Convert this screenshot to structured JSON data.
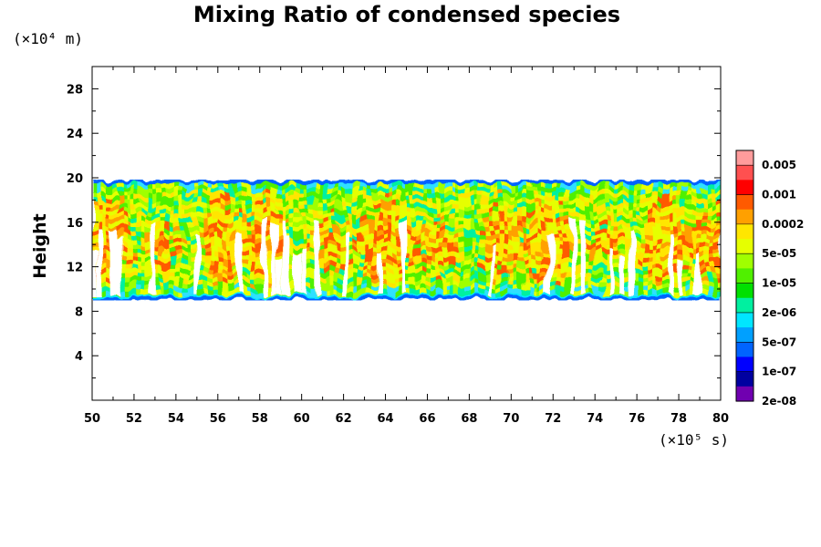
{
  "chart_data": {
    "type": "heatmap",
    "title": "Mixing Ratio of condensed species",
    "ylabel": "Height",
    "y_unit": "(×10⁴ m)",
    "x_unit": "(×10⁵ s)",
    "xlim": [
      50,
      80
    ],
    "ylim": [
      0,
      30
    ],
    "x_ticks": [
      "50",
      "52",
      "54",
      "56",
      "58",
      "60",
      "62",
      "64",
      "66",
      "68",
      "70",
      "72",
      "74",
      "76",
      "78",
      "80"
    ],
    "y_ticks": [
      "4",
      "8",
      "12",
      "16",
      "20",
      "24",
      "28"
    ],
    "cloud_layer": {
      "bottom": 9.5,
      "top": 19.5
    },
    "colorbar": {
      "labels": [
        "0.005",
        "0.001",
        "0.0002",
        "5e-05",
        "1e-05",
        "2e-06",
        "5e-07",
        "1e-07",
        "2e-08"
      ],
      "colors": [
        "#ff9c9c",
        "#ff5050",
        "#ff0000",
        "#ff5a00",
        "#ffa000",
        "#ffe600",
        "#e6ff00",
        "#a0ff00",
        "#50f000",
        "#00e000",
        "#00f0a0",
        "#00e6ff",
        "#00a0ff",
        "#0064ff",
        "#0000ff",
        "#0000a0",
        "#7000b0"
      ]
    }
  }
}
